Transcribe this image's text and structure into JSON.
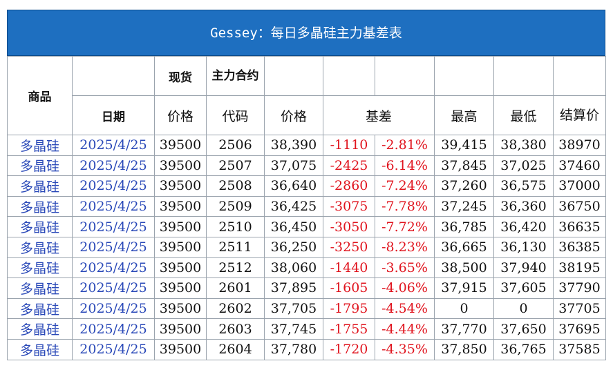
{
  "title": "Gessey：每日多晶硅主力基差表",
  "headers": {
    "product": "商品",
    "spot": "现货",
    "main_contract": "主力合约",
    "date": "日期",
    "spot_price": "价格",
    "code": "代码",
    "price": "价格",
    "basis": "基差",
    "high": "最高",
    "low": "最低",
    "settle": "结算价"
  },
  "rows": [
    {
      "product": "多晶硅",
      "date": "2025/4/25",
      "spot": "39500",
      "code": "2506",
      "price": "38,390",
      "basis": "-1110",
      "basis_pct": "-2.81%",
      "high": "39,415",
      "low": "38,380",
      "settle": "38970"
    },
    {
      "product": "多晶硅",
      "date": "2025/4/25",
      "spot": "39500",
      "code": "2507",
      "price": "37,075",
      "basis": "-2425",
      "basis_pct": "-6.14%",
      "high": "37,845",
      "low": "37,025",
      "settle": "37460"
    },
    {
      "product": "多晶硅",
      "date": "2025/4/25",
      "spot": "39500",
      "code": "2508",
      "price": "36,640",
      "basis": "-2860",
      "basis_pct": "-7.24%",
      "high": "37,260",
      "low": "36,575",
      "settle": "37000"
    },
    {
      "product": "多晶硅",
      "date": "2025/4/25",
      "spot": "39500",
      "code": "2509",
      "price": "36,425",
      "basis": "-3075",
      "basis_pct": "-7.78%",
      "high": "37,245",
      "low": "36,360",
      "settle": "36750"
    },
    {
      "product": "多晶硅",
      "date": "2025/4/25",
      "spot": "39500",
      "code": "2510",
      "price": "36,450",
      "basis": "-3050",
      "basis_pct": "-7.72%",
      "high": "36,785",
      "low": "36,420",
      "settle": "36635"
    },
    {
      "product": "多晶硅",
      "date": "2025/4/25",
      "spot": "39500",
      "code": "2511",
      "price": "36,250",
      "basis": "-3250",
      "basis_pct": "-8.23%",
      "high": "36,665",
      "low": "36,130",
      "settle": "36385"
    },
    {
      "product": "多晶硅",
      "date": "2025/4/25",
      "spot": "39500",
      "code": "2512",
      "price": "38,060",
      "basis": "-1440",
      "basis_pct": "-3.65%",
      "high": "38,500",
      "low": "37,940",
      "settle": "38195"
    },
    {
      "product": "多晶硅",
      "date": "2025/4/25",
      "spot": "39500",
      "code": "2601",
      "price": "37,895",
      "basis": "-1605",
      "basis_pct": "-4.06%",
      "high": "37,915",
      "low": "37,605",
      "settle": "37790"
    },
    {
      "product": "多晶硅",
      "date": "2025/4/25",
      "spot": "39500",
      "code": "2602",
      "price": "37,705",
      "basis": "-1795",
      "basis_pct": "-4.54%",
      "high": "0",
      "low": "0",
      "settle": "37705"
    },
    {
      "product": "多晶硅",
      "date": "2025/4/25",
      "spot": "39500",
      "code": "2603",
      "price": "37,745",
      "basis": "-1755",
      "basis_pct": "-4.44%",
      "high": "37,770",
      "low": "37,650",
      "settle": "37695"
    },
    {
      "product": "多晶硅",
      "date": "2025/4/25",
      "spot": "39500",
      "code": "2604",
      "price": "37,780",
      "basis": "-1720",
      "basis_pct": "-4.35%",
      "high": "37,850",
      "low": "36,765",
      "settle": "37585"
    }
  ]
}
